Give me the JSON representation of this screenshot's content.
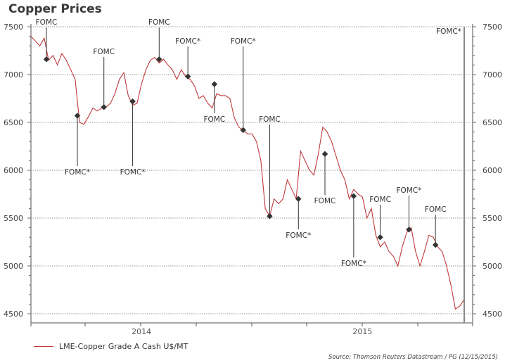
{
  "chart_data": {
    "type": "line",
    "title": "Copper Prices",
    "xlabel": "",
    "ylabel": "",
    "ylim": [
      4500,
      7500
    ],
    "xlim": [
      2013.5,
      2015.46
    ],
    "yticks": [
      4500,
      5000,
      5500,
      6000,
      6500,
      7000,
      7500
    ],
    "ytick_labels": [
      "4500",
      "5000",
      "5500",
      "6000",
      "6500",
      "7000",
      "7500"
    ],
    "xtick_labels": [
      {
        "label": "2014",
        "x": 2014.0
      },
      {
        "label": "2015",
        "x": 2015.0
      }
    ],
    "grid": "horizontal dotted",
    "legend_position": "bottom-left",
    "series": [
      {
        "name": "LME-Copper Grade A Cash U$/MT",
        "color": "#c0393b",
        "x": [
          2013.5,
          2013.52,
          2013.54,
          2013.56,
          2013.58,
          2013.6,
          2013.62,
          2013.64,
          2013.66,
          2013.68,
          2013.7,
          2013.72,
          2013.74,
          2013.76,
          2013.78,
          2013.8,
          2013.82,
          2013.84,
          2013.86,
          2013.88,
          2013.9,
          2013.92,
          2013.94,
          2013.96,
          2013.98,
          2014.0,
          2014.02,
          2014.04,
          2014.06,
          2014.08,
          2014.1,
          2014.12,
          2014.14,
          2014.16,
          2014.18,
          2014.2,
          2014.22,
          2014.24,
          2014.26,
          2014.28,
          2014.3,
          2014.32,
          2014.34,
          2014.36,
          2014.38,
          2014.4,
          2014.42,
          2014.44,
          2014.46,
          2014.48,
          2014.5,
          2014.52,
          2014.54,
          2014.56,
          2014.58,
          2014.6,
          2014.62,
          2014.64,
          2014.66,
          2014.68,
          2014.7,
          2014.72,
          2014.74,
          2014.76,
          2014.78,
          2014.8,
          2014.82,
          2014.84,
          2014.86,
          2014.88,
          2014.9,
          2014.92,
          2014.94,
          2014.96,
          2014.98,
          2015.0,
          2015.02,
          2015.04,
          2015.06,
          2015.08,
          2015.1,
          2015.12,
          2015.14,
          2015.16,
          2015.18,
          2015.2,
          2015.22,
          2015.24,
          2015.26,
          2015.28,
          2015.3,
          2015.32,
          2015.34,
          2015.36,
          2015.38,
          2015.4,
          2015.42,
          2015.44,
          2015.46
        ],
        "y": [
          7400,
          7350,
          7300,
          7380,
          7150,
          7200,
          7100,
          7220,
          7150,
          7050,
          6950,
          6500,
          6480,
          6560,
          6650,
          6620,
          6650,
          6660,
          6700,
          6800,
          6950,
          7020,
          6780,
          6680,
          6700,
          6900,
          7050,
          7150,
          7180,
          7120,
          7160,
          7100,
          7050,
          6950,
          7050,
          6980,
          6950,
          6880,
          6750,
          6780,
          6700,
          6650,
          6800,
          6780,
          6780,
          6750,
          6550,
          6450,
          6420,
          6380,
          6380,
          6300,
          6100,
          5600,
          5520,
          5700,
          5650,
          5700,
          5900,
          5800,
          5700,
          6200,
          6100,
          6000,
          5950,
          6170,
          6450,
          6400,
          6300,
          6150,
          6000,
          5900,
          5700,
          5800,
          5750,
          5720,
          5500,
          5600,
          5320,
          5200,
          5250,
          5150,
          5100,
          5000,
          5200,
          5350,
          5400,
          5150,
          5000,
          5150,
          5320,
          5300,
          5200,
          5150,
          5000,
          4800,
          4550,
          4580,
          4650
        ]
      }
    ],
    "annotations": [
      {
        "label": "FOMC",
        "x": 2013.57,
        "y": 7160
      },
      {
        "label": "FOMC*",
        "x": 2013.71,
        "y": 6570
      },
      {
        "label": "FOMC",
        "x": 2013.83,
        "y": 6660
      },
      {
        "label": "FOMC*",
        "x": 2013.96,
        "y": 6720
      },
      {
        "label": "FOMC",
        "x": 2014.08,
        "y": 7160
      },
      {
        "label": "FOMC*",
        "x": 2014.21,
        "y": 6980
      },
      {
        "label": "FOMC",
        "x": 2014.33,
        "y": 6900
      },
      {
        "label": "FOMC*",
        "x": 2014.46,
        "y": 6420
      },
      {
        "label": "FOMC",
        "x": 2014.58,
        "y": 5520
      },
      {
        "label": "FOMC*",
        "x": 2014.71,
        "y": 5700
      },
      {
        "label": "FOMC",
        "x": 2014.83,
        "y": 6170
      },
      {
        "label": "FOMC*",
        "x": 2014.96,
        "y": 5730
      },
      {
        "label": "FOMC",
        "x": 2015.08,
        "y": 5300
      },
      {
        "label": "FOMC*",
        "x": 2015.21,
        "y": 5380
      },
      {
        "label": "FOMC",
        "x": 2015.33,
        "y": 5220
      },
      {
        "label": "FOMC*",
        "x": 2015.46,
        "y": 7500
      }
    ]
  },
  "legend_label": "LME-Copper Grade A Cash U$/MT",
  "source": "Source: Thomson Reuters Datastream / PG (12/15/2015)"
}
